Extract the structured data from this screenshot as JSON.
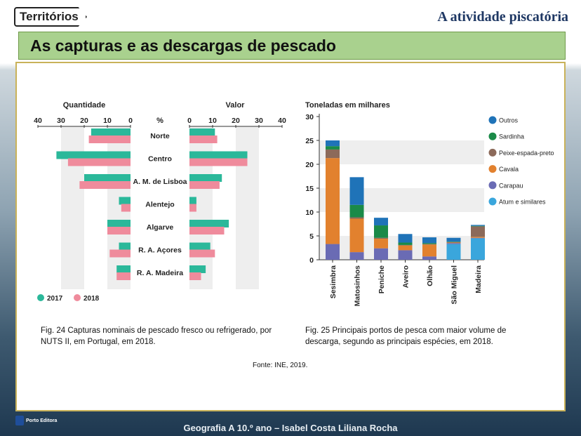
{
  "header": {
    "logo_text": "Territórios",
    "section_title": "A atividade piscatória",
    "slide_title": "As capturas e as descargas de pescado"
  },
  "captions": {
    "fig24": "Fig. 24  Capturas nominais de pescado fresco ou refrigerado, por NUTS II, em Portugal, em 2018.",
    "fig25": "Fig. 25  Principais portos de pesca com maior volume de descarga, segundo as principais espécies, em 2018.",
    "source": "Fonte: INE, 2019."
  },
  "footer": {
    "publisher": "Porto Editora",
    "credits": "Geografia A 10.º ano – Isabel Costa  Liliana Rocha"
  },
  "colors": {
    "c2017": "#2bb89a",
    "c2018": "#ef8b9c",
    "outros": "#1f73b8",
    "sardinha": "#1a8a48",
    "peixe_espada": "#8c6a5a",
    "cavala": "#e2812e",
    "carapau": "#6a6bb4",
    "atum": "#3aa6dc"
  },
  "chart_data": [
    {
      "type": "bar",
      "orientation": "horizontal-butterfly",
      "left_title": "Quantidade",
      "right_title": "Valor",
      "center_label": "%",
      "left_ticks": [
        "40",
        "30",
        "20",
        "10",
        "0"
      ],
      "right_ticks": [
        "0",
        "10",
        "20",
        "30",
        "40"
      ],
      "xlim": [
        0,
        40
      ],
      "categories": [
        "Norte",
        "Centro",
        "A. M. de Lisboa",
        "Alentejo",
        "Algarve",
        "R. A. Açores",
        "R. A. Madeira"
      ],
      "series": [
        {
          "name": "2017",
          "quantidade": [
            17,
            32,
            20,
            5,
            10,
            5,
            6
          ],
          "valor": [
            11,
            25,
            14,
            3,
            17,
            9,
            7
          ]
        },
        {
          "name": "2018",
          "quantidade": [
            18,
            27,
            22,
            4,
            10,
            9,
            6
          ],
          "valor": [
            12,
            25,
            13,
            3,
            15,
            11,
            5
          ]
        }
      ]
    },
    {
      "type": "bar",
      "orientation": "stacked",
      "title": "Toneladas em milhares",
      "ylim": [
        0,
        30
      ],
      "yticks": [
        "0",
        "5",
        "10",
        "15",
        "20",
        "25",
        "30"
      ],
      "categories": [
        "Sesimbra",
        "Matosinhos",
        "Peniche",
        "Aveiro",
        "Olhão",
        "São Miguel",
        "Madeira"
      ],
      "series": [
        {
          "name": "Atum e similares",
          "values": [
            0,
            0,
            0,
            0,
            0,
            3.3,
            4.5
          ]
        },
        {
          "name": "Carapau",
          "values": [
            3.3,
            1.6,
            2.4,
            2.0,
            0.7,
            0.2,
            0.1
          ]
        },
        {
          "name": "Cavala",
          "values": [
            18.0,
            7.0,
            2.0,
            1.0,
            2.5,
            0.1,
            0.2
          ]
        },
        {
          "name": "Peixe-espada-preto",
          "values": [
            1.8,
            0.3,
            0.2,
            0.1,
            0.1,
            0.1,
            2.2
          ]
        },
        {
          "name": "Sardinha",
          "values": [
            0.7,
            2.6,
            2.6,
            0.5,
            0.2,
            0.1,
            0.1
          ]
        },
        {
          "name": "Outros",
          "values": [
            1.2,
            5.8,
            1.6,
            1.8,
            1.2,
            0.8,
            0.2
          ]
        }
      ],
      "legend_order": [
        "Outros",
        "Sardinha",
        "Peixe-espada-preto",
        "Cavala",
        "Carapau",
        "Atum e similares"
      ],
      "legend_position": "right"
    }
  ]
}
